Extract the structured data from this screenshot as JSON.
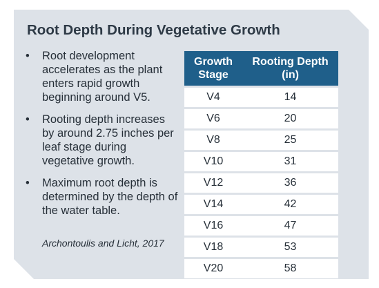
{
  "title": "Root Depth During Vegetative Growth",
  "bullet_symbol": "•",
  "bullets": [
    "Root development accelerates as the plant enters rapid growth beginning around V5.",
    "Rooting depth increases by around 2.75 inches per leaf stage during vegetative growth.",
    "Maximum root depth is determined by the depth of the water table."
  ],
  "citation": "Archontoulis and Licht, 2017",
  "table": {
    "headers": [
      "Growth Stage",
      "Rooting Depth (in)"
    ],
    "rows": [
      [
        "V4",
        "14"
      ],
      [
        "V6",
        "20"
      ],
      [
        "V8",
        "25"
      ],
      [
        "V10",
        "31"
      ],
      [
        "V12",
        "36"
      ],
      [
        "V14",
        "42"
      ],
      [
        "V16",
        "47"
      ],
      [
        "V18",
        "53"
      ],
      [
        "V20",
        "58"
      ]
    ]
  },
  "colors": {
    "panel_background": "#dde2e8",
    "table_header": "#1f5f8a",
    "title_text": "#2e3a46"
  }
}
